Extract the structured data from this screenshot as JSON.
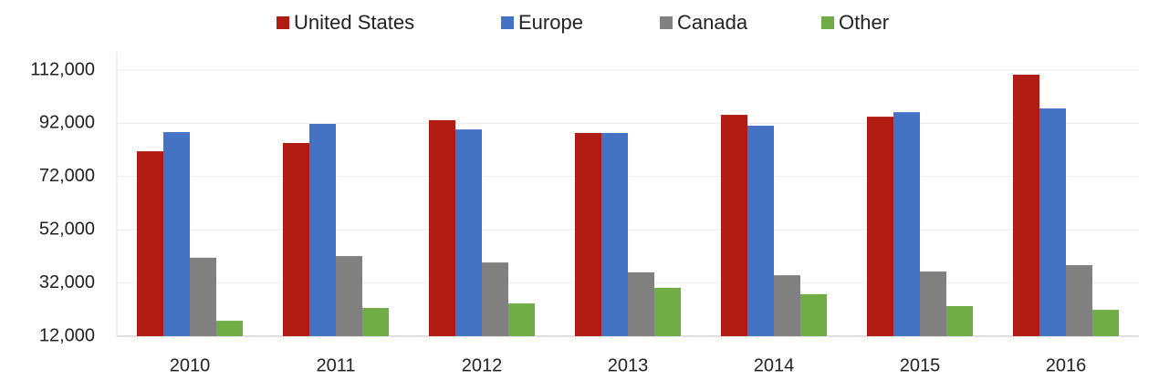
{
  "chart_data": {
    "type": "bar",
    "categories": [
      "2010",
      "2011",
      "2012",
      "2013",
      "2014",
      "2015",
      "2016"
    ],
    "series": [
      {
        "name": "United States",
        "color": "#b01c14",
        "values": [
          81500,
          84600,
          93200,
          88400,
          95200,
          94500,
          110300
        ]
      },
      {
        "name": "Europe",
        "color": "#4472c4",
        "values": [
          88700,
          91800,
          89700,
          88400,
          91100,
          96200,
          97600
        ]
      },
      {
        "name": "Canada",
        "color": "#808080",
        "values": [
          41500,
          42100,
          39700,
          36000,
          34900,
          36300,
          38700
        ]
      },
      {
        "name": "Other",
        "color": "#70ad47",
        "values": [
          17800,
          22600,
          24300,
          30200,
          27800,
          23300,
          21900
        ]
      }
    ],
    "ylim": [
      12000,
      112000
    ],
    "yticks": [
      {
        "value": 12000,
        "label": "12,000"
      },
      {
        "value": 32000,
        "label": "32,000"
      },
      {
        "value": 52000,
        "label": "52,000"
      },
      {
        "value": 72000,
        "label": "72,000"
      },
      {
        "value": 92000,
        "label": "92,000"
      },
      {
        "value": 112000,
        "label": "112,000"
      }
    ],
    "grid": true,
    "legend": "top"
  }
}
